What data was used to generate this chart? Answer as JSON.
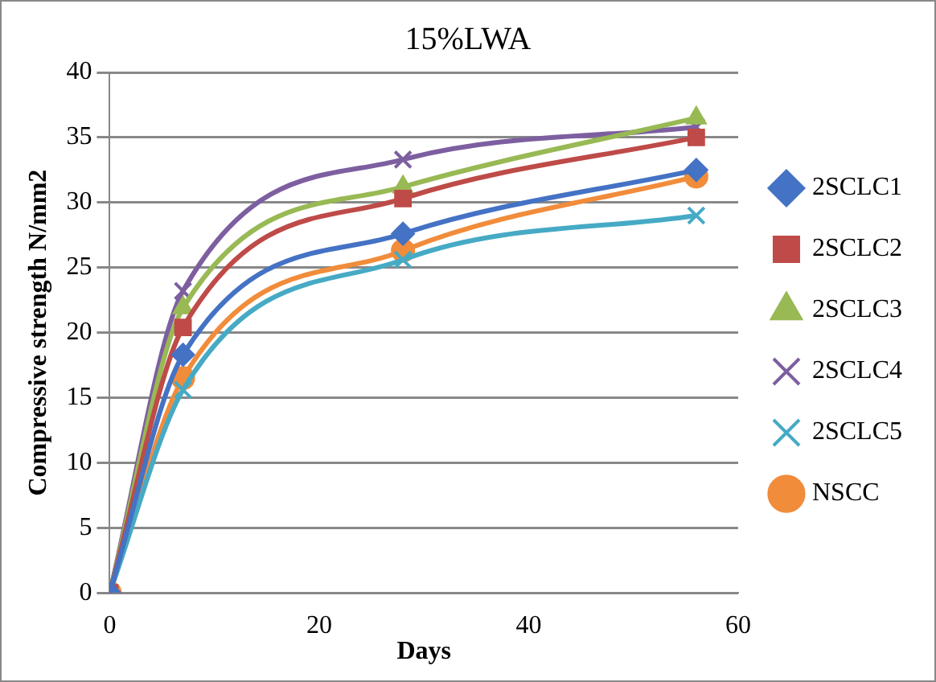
{
  "chart_data": {
    "type": "line",
    "title": "15%LWA",
    "xlabel": "Days",
    "ylabel": "Compressive strength N/mm2",
    "xlim": [
      0,
      60
    ],
    "xticks": [
      0,
      20,
      40,
      60
    ],
    "ylim": [
      0,
      40
    ],
    "yticks": [
      0,
      5,
      10,
      15,
      20,
      25,
      30,
      35,
      40
    ],
    "grid": "y",
    "legend": "right",
    "line_style": "solid",
    "x": [
      0,
      7,
      28,
      56
    ],
    "series": [
      {
        "name": "2SCLC1",
        "color": "#4472c4",
        "marker": "diamond",
        "values": [
          0,
          18.3,
          27.6,
          32.5
        ]
      },
      {
        "name": "2SCLC2",
        "color": "#be4b48",
        "marker": "square",
        "values": [
          0,
          20.4,
          30.3,
          35
        ]
      },
      {
        "name": "2SCLC3",
        "color": "#98b954",
        "marker": "triangle",
        "values": [
          0,
          21.9,
          31.2,
          36.5
        ]
      },
      {
        "name": "2SCLC4",
        "color": "#7d5fa0",
        "marker": "cross",
        "values": [
          0,
          23.2,
          33.3,
          35.8
        ]
      },
      {
        "name": "2SCLC5",
        "color": "#46aac5",
        "marker": "cross",
        "values": [
          0,
          15.6,
          25.6,
          29
        ]
      },
      {
        "name": "NSCC",
        "color": "#f18c3b",
        "marker": "circle",
        "values": [
          0,
          16.5,
          26.3,
          32
        ]
      }
    ]
  }
}
